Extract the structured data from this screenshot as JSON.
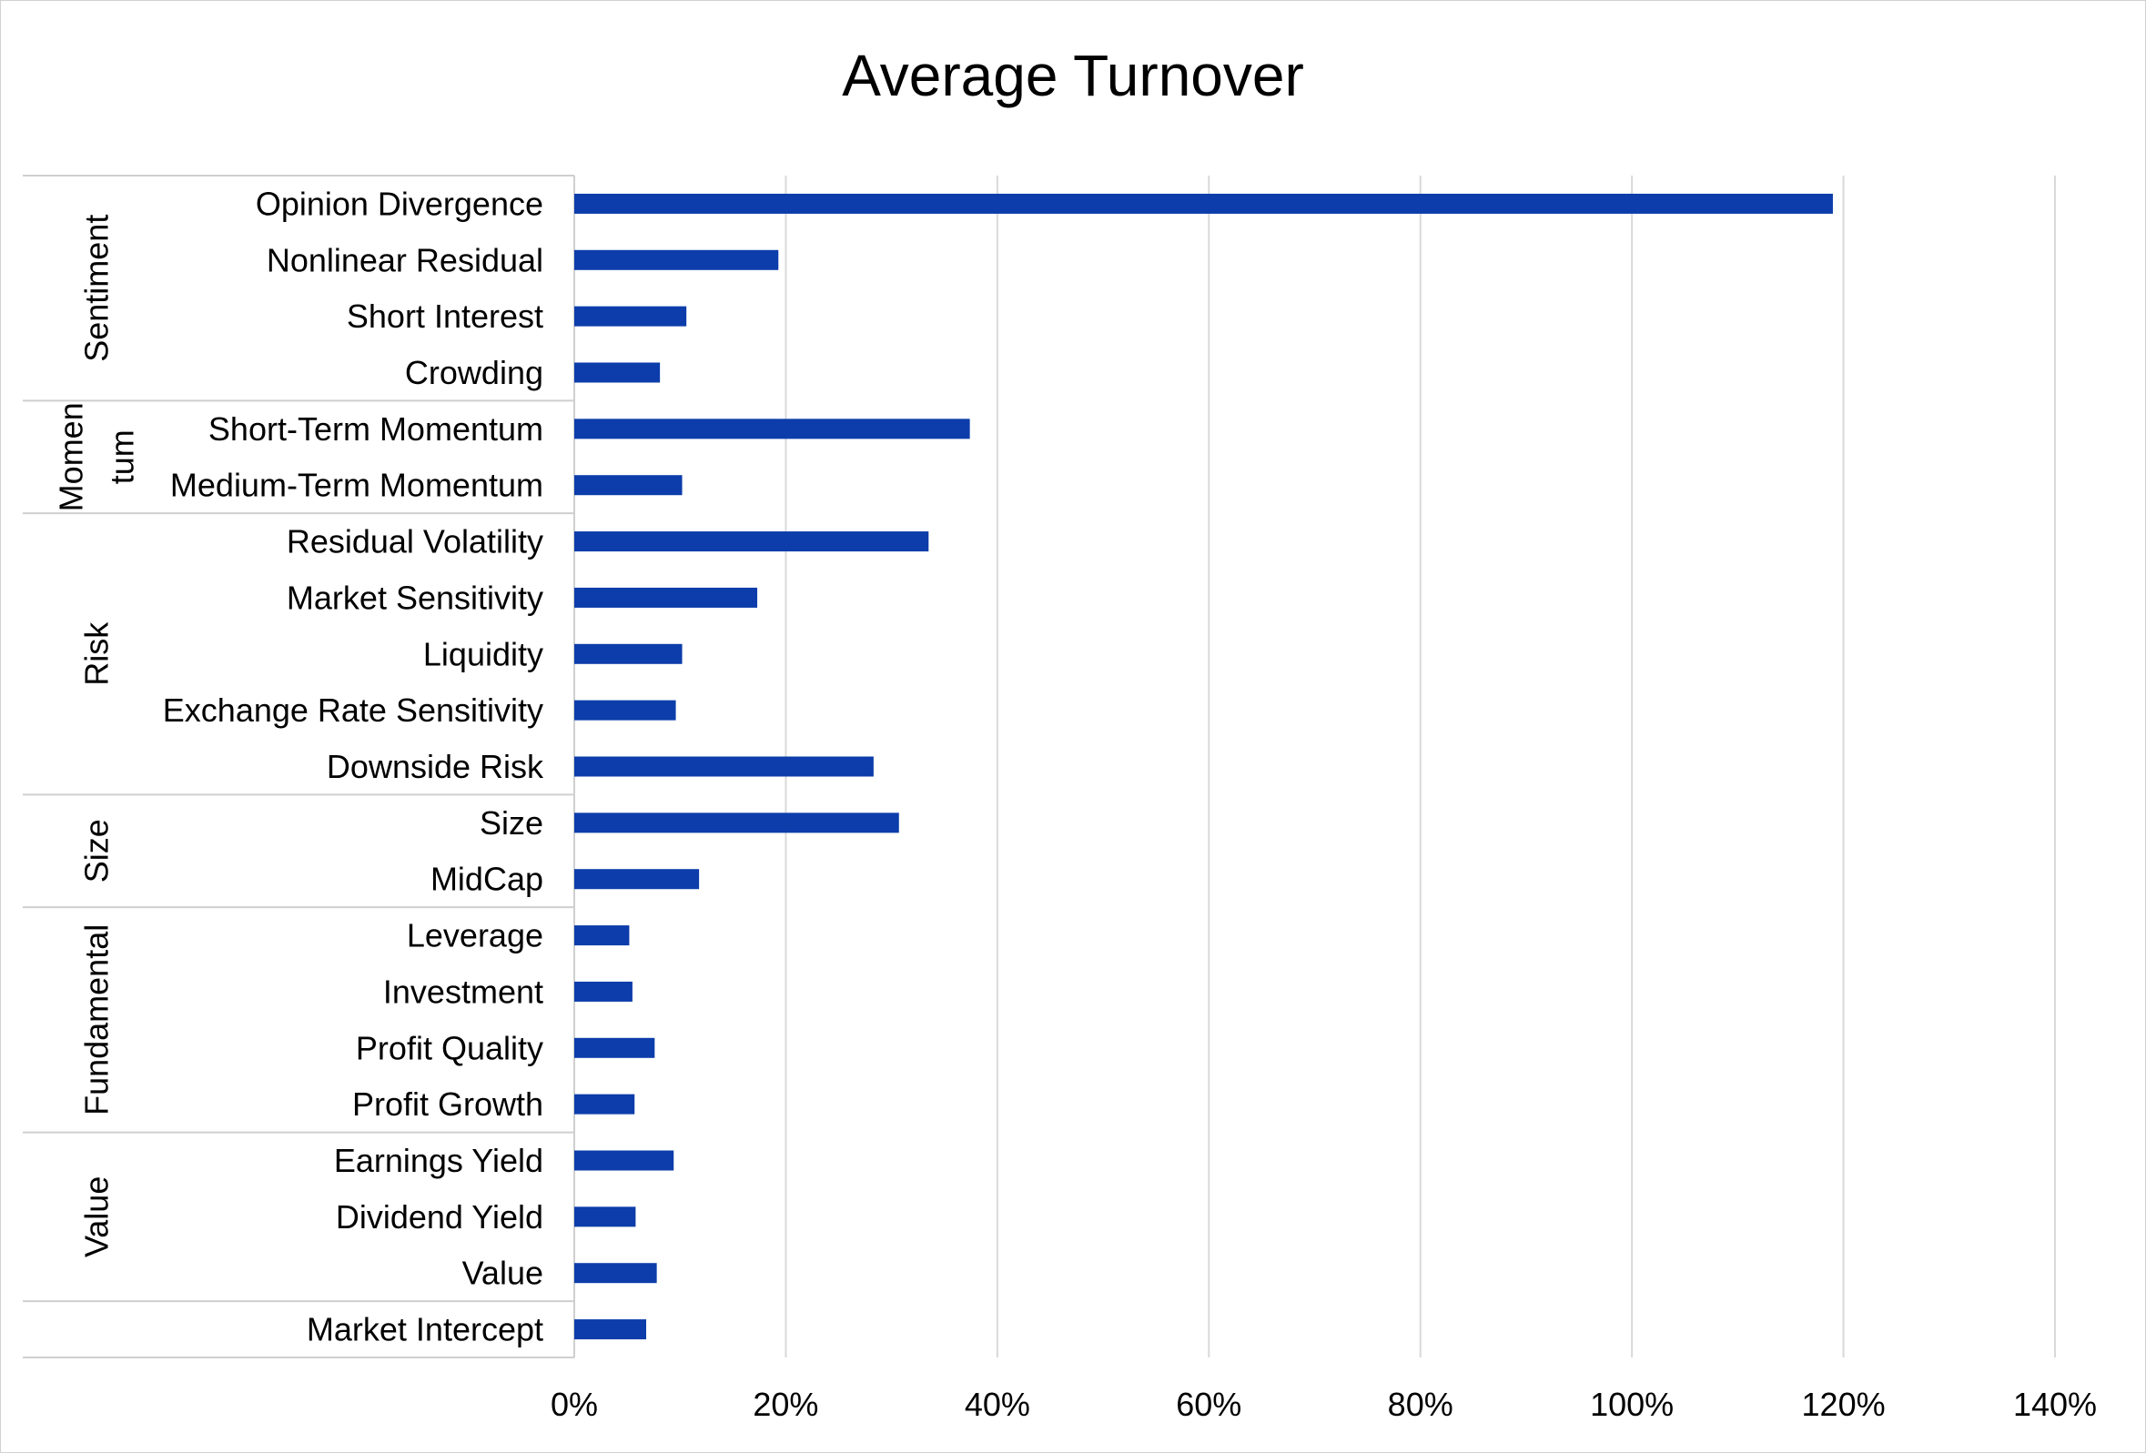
{
  "chart_data": {
    "type": "bar",
    "orientation": "horizontal",
    "title": "Average Turnover",
    "xlabel": "",
    "ylabel": "",
    "xlim": [
      0,
      1.4
    ],
    "x_ticks": [
      0,
      0.2,
      0.4,
      0.6,
      0.8,
      1.0,
      1.2,
      1.4
    ],
    "x_tick_labels": [
      "0%",
      "20%",
      "40%",
      "60%",
      "80%",
      "100%",
      "120%",
      "140%"
    ],
    "grid": true,
    "legend": "none",
    "bar_color": "#0c3daa",
    "categories": [
      "Opinion Divergence",
      "Nonlinear Residual",
      "Short Interest",
      "Crowding",
      "Short-Term Momentum",
      "Medium-Term Momentum",
      "Residual Volatility",
      "Market Sensitivity",
      "Liquidity",
      "Exchange Rate Sensitivity",
      "Downside Risk",
      "Size",
      "MidCap",
      "Leverage",
      "Investment",
      "Profit Quality",
      "Profit Growth",
      "Earnings Yield",
      "Dividend Yield",
      "Value",
      "Market Intercept"
    ],
    "values": [
      1.19,
      0.193,
      0.106,
      0.081,
      0.374,
      0.102,
      0.335,
      0.173,
      0.102,
      0.096,
      0.283,
      0.307,
      0.118,
      0.052,
      0.055,
      0.076,
      0.057,
      0.094,
      0.058,
      0.078,
      0.068
    ],
    "groups": [
      {
        "lines": [
          "Sentiment"
        ],
        "count": 4
      },
      {
        "lines": [
          "Momen",
          "tum"
        ],
        "count": 2
      },
      {
        "lines": [
          "Risk"
        ],
        "count": 5
      },
      {
        "lines": [
          "Size"
        ],
        "count": 2
      },
      {
        "lines": [
          "Fundamental"
        ],
        "count": 4
      },
      {
        "lines": [
          "Value"
        ],
        "count": 3
      },
      {
        "lines": [],
        "count": 1
      }
    ]
  }
}
